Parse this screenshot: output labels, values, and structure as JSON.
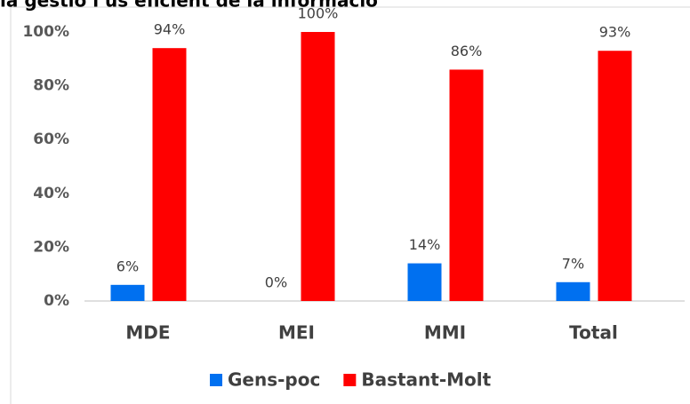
{
  "chart_data": {
    "type": "bar",
    "title": "la gestió i ús eficient de la informació",
    "categories": [
      "MDE",
      "MEI",
      "MMI",
      "Total"
    ],
    "series": [
      {
        "name": "Gens-poc",
        "color": "#0070f0",
        "values": [
          6,
          0,
          14,
          7
        ],
        "value_labels": [
          "6%",
          "0%",
          "14%",
          "7%"
        ]
      },
      {
        "name": "Bastant-Molt",
        "color": "#ff0000",
        "values": [
          94,
          100,
          86,
          93
        ],
        "value_labels": [
          "94%",
          "100%",
          "86%",
          "93%"
        ]
      }
    ],
    "ylim": [
      0,
      100
    ],
    "yticks": [
      {
        "value": 0,
        "label": "0%"
      },
      {
        "value": 20,
        "label": "20%"
      },
      {
        "value": 40,
        "label": "40%"
      },
      {
        "value": 60,
        "label": "60%"
      },
      {
        "value": 80,
        "label": "80%"
      },
      {
        "value": 100,
        "label": "100%"
      }
    ],
    "grid": false,
    "legend": "bottom"
  }
}
